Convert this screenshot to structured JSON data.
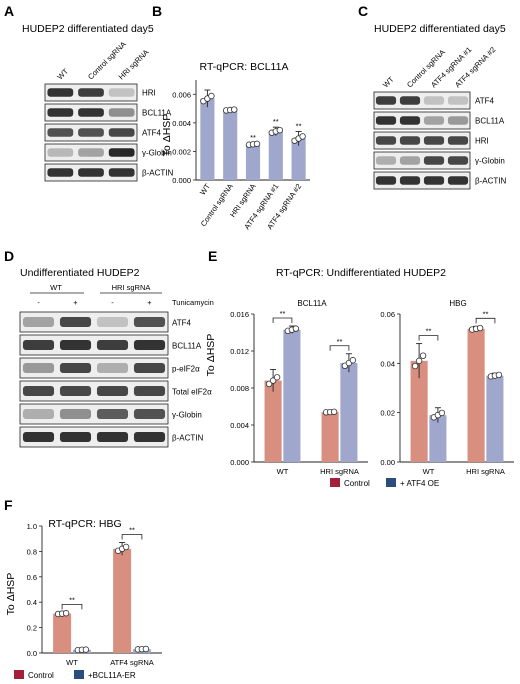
{
  "panels": {
    "A": {
      "letter": "A",
      "title": "HUDEP2 differentiated day5",
      "columns": [
        "WT",
        "Control sgRNA",
        "HRI sgRNA"
      ],
      "bands": [
        "HRI",
        "BCL11A",
        "ATF4",
        "γ-Globin",
        "β-ACTIN"
      ]
    },
    "B": {
      "letter": "B",
      "title": "RT-qPCR: BCL11A",
      "ylabel": "To ΔHSP",
      "categories": [
        "WT",
        "Control sgRNA",
        "HRI sgRNA",
        "ATF4 sgRNA #1",
        "ATF4 sgRNA #2"
      ],
      "values": [
        0.0057,
        0.0049,
        0.0025,
        0.0034,
        0.0029
      ],
      "sig": [
        "",
        "",
        "**",
        "**",
        "**"
      ],
      "yticks": [
        "0.000",
        "0.002",
        "0.004",
        "0.006"
      ],
      "ylim": [
        0,
        0.007
      ]
    },
    "C": {
      "letter": "C",
      "title": "HUDEP2 differentiated day5",
      "columns": [
        "WT",
        "Control sgRNA",
        "ATF4 sgRNA #1",
        "ATF4 sgRNA #2"
      ],
      "bands": [
        "ATF4",
        "BCL11A",
        "HRI",
        "γ-Globin",
        "β-ACTIN"
      ]
    },
    "D": {
      "letter": "D",
      "title": "Undifferentiated HUDEP2",
      "groups": [
        "WT",
        "HRI sgRNA"
      ],
      "treatment_signs": [
        "-",
        "+",
        "-",
        "+"
      ],
      "treatment_label": "Tunicamycin",
      "bands": [
        "ATF4",
        "BCL11A",
        "p-eIF2α",
        "Total eIF2α",
        "γ-Globin",
        "β-ACTIN"
      ]
    },
    "E": {
      "letter": "E",
      "title": "RT-qPCR: Undifferentiated HUDEP2",
      "ylabel": "To ΔHSP",
      "legend": [
        "Control",
        "+ ATF4 OE"
      ]
    },
    "F": {
      "letter": "F",
      "title": "RT-qPCR: HBG",
      "ylabel": "To ΔHSP",
      "legend": [
        "Control",
        "+BCL11A-ER"
      ]
    }
  },
  "chart_data": [
    {
      "id": "B",
      "type": "bar",
      "title": "RT-qPCR: BCL11A",
      "categories": [
        "WT",
        "Control sgRNA",
        "HRI sgRNA",
        "ATF4 sgRNA #1",
        "ATF4 sgRNA #2"
      ],
      "values": [
        0.0057,
        0.0049,
        0.0025,
        0.0034,
        0.0029
      ],
      "errors": [
        0.0006,
        0.0001,
        0.0001,
        0.0003,
        0.0005
      ],
      "ylabel": "To ΔHSP",
      "ylim": [
        0,
        0.007
      ],
      "color": "#9fa8cc"
    },
    {
      "id": "E-BCL11A",
      "type": "bar",
      "title": "BCL11A",
      "categories": [
        "WT",
        "HRI sgRNA"
      ],
      "series": [
        {
          "name": "Control",
          "values": [
            0.0088,
            0.0054
          ],
          "errors": [
            0.0012,
            0.0001
          ],
          "color": "#d88f80"
        },
        {
          "name": "+ ATF4 OE",
          "values": [
            0.0143,
            0.0107
          ],
          "errors": [
            0.0004,
            0.001
          ],
          "color": "#9fa8cc"
        }
      ],
      "yticks": [
        "0.000",
        "0.004",
        "0.008",
        "0.012",
        "0.016"
      ],
      "ylim": [
        0,
        0.016
      ]
    },
    {
      "id": "E-HBG",
      "type": "bar",
      "title": "HBG",
      "categories": [
        "WT",
        "HRI sgRNA"
      ],
      "series": [
        {
          "name": "Control",
          "values": [
            0.041,
            0.054
          ],
          "errors": [
            0.007,
            0.001
          ],
          "color": "#d88f80"
        },
        {
          "name": "+ ATF4 OE",
          "values": [
            0.019,
            0.035
          ],
          "errors": [
            0.003,
            0.001
          ],
          "color": "#9fa8cc"
        }
      ],
      "yticks": [
        "0.00",
        "0.02",
        "0.04",
        "0.06"
      ],
      "ylim": [
        0,
        0.06
      ]
    },
    {
      "id": "F",
      "type": "bar",
      "title": "RT-qPCR: HBG",
      "categories": [
        "WT",
        "ATF4 sgRNA"
      ],
      "series": [
        {
          "name": "Control",
          "values": [
            0.31,
            0.82
          ],
          "errors": [
            0.01,
            0.05
          ],
          "color": "#d88f80"
        },
        {
          "name": "+BCL11A-ER",
          "values": [
            0.025,
            0.03
          ],
          "errors": [
            0.005,
            0.005
          ],
          "color": "#9fa8cc"
        }
      ],
      "yticks": [
        "0.0",
        "0.2",
        "0.4",
        "0.6",
        "0.8",
        "1.0"
      ],
      "ylim": [
        0,
        1.0
      ]
    }
  ],
  "common": {
    "sig": "**",
    "control_color": "#a3203b",
    "oe_color": "#2b4d7e"
  }
}
